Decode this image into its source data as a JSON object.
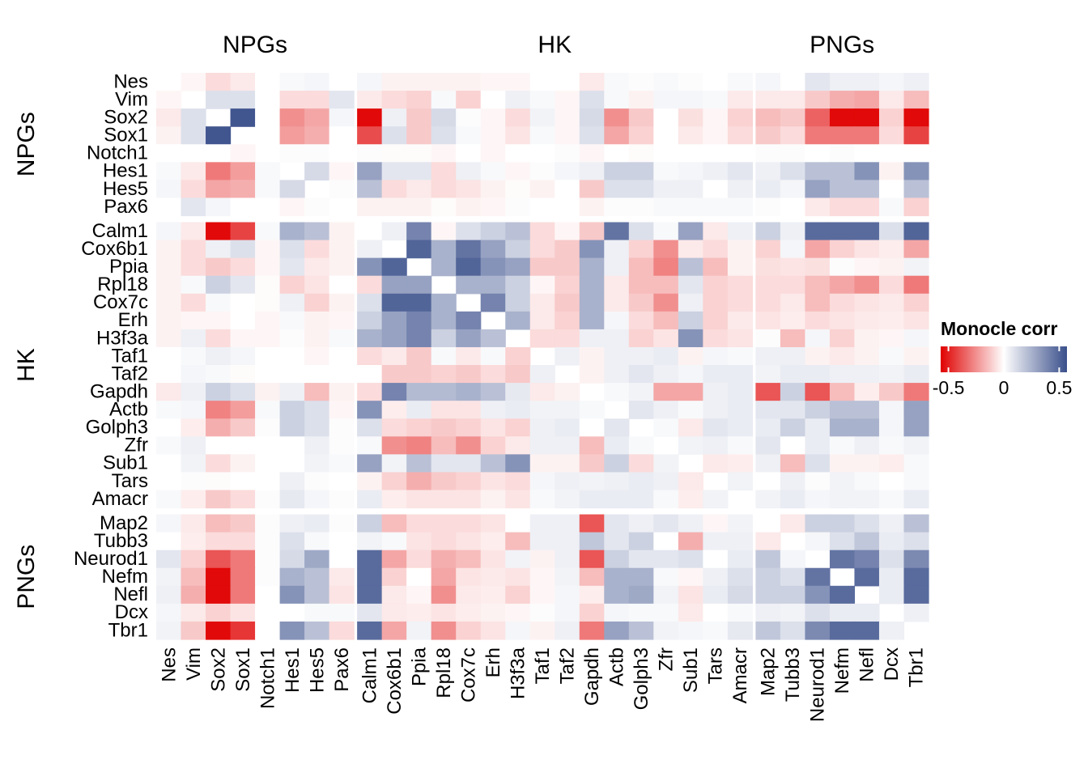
{
  "chart_data": {
    "type": "heatmap",
    "groups": [
      {
        "name": "NPGs",
        "genes": [
          "Nes",
          "Vim",
          "Sox2",
          "Sox1",
          "Notch1",
          "Hes1",
          "Hes5",
          "Pax6"
        ]
      },
      {
        "name": "HK",
        "genes": [
          "Calm1",
          "Cox6b1",
          "Ppia",
          "Rpl18",
          "Cox7c",
          "Erh",
          "H3f3a",
          "Taf1",
          "Taf2",
          "Gapdh",
          "Actb",
          "Golph3",
          "Zfr",
          "Sub1",
          "Tars",
          "Amacr"
        ]
      },
      {
        "name": "PNGs",
        "genes": [
          "Map2",
          "Tubb3",
          "Neurod1",
          "Nefm",
          "Nefl",
          "Dcx",
          "Tbr1"
        ]
      }
    ],
    "values": [
      [
        null,
        -0.02,
        -0.08,
        -0.05,
        0,
        0.02,
        0.03,
        0,
        0.03,
        -0.03,
        -0.03,
        -0.03,
        -0.03,
        -0.02,
        -0.02,
        0,
        0,
        -0.05,
        0.02,
        0.01,
        0.02,
        0.01,
        0,
        0.02,
        0.03,
        0,
        0.08,
        0.05,
        0.05,
        0.03,
        0.05
      ],
      [
        -0.02,
        null,
        0.1,
        0.1,
        0,
        -0.08,
        -0.08,
        0.08,
        -0.05,
        -0.08,
        -0.1,
        0.02,
        -0.1,
        0,
        0.05,
        0.02,
        -0.02,
        0.1,
        0.02,
        -0.03,
        0.03,
        0.03,
        0.02,
        -0.05,
        -0.05,
        -0.05,
        -0.12,
        -0.18,
        -0.2,
        -0.05,
        -0.15
      ],
      [
        -0.05,
        0.1,
        null,
        0.55,
        0,
        -0.25,
        -0.2,
        0.03,
        -0.55,
        0.05,
        -0.12,
        0.12,
        0.01,
        -0.02,
        -0.08,
        0.04,
        -0.02,
        0.12,
        -0.25,
        -0.12,
        0,
        -0.07,
        -0.02,
        -0.1,
        -0.15,
        -0.12,
        -0.35,
        -0.55,
        -0.55,
        -0.1,
        -0.55
      ],
      [
        -0.03,
        0.1,
        0.55,
        null,
        0,
        -0.22,
        -0.18,
        0,
        -0.4,
        0.1,
        -0.12,
        0.1,
        0.02,
        -0.02,
        -0.06,
        0.02,
        -0.02,
        0.1,
        -0.2,
        -0.1,
        0,
        -0.05,
        -0.02,
        -0.08,
        -0.12,
        -0.08,
        -0.3,
        -0.3,
        -0.3,
        -0.08,
        -0.42
      ],
      [
        0,
        0,
        0,
        -0.02,
        null,
        0.01,
        0.01,
        0,
        0.01,
        -0.01,
        -0.01,
        -0.02,
        0,
        -0.02,
        0,
        0,
        0.01,
        -0.02,
        0,
        -0.01,
        0,
        0,
        0,
        0,
        0.01,
        0.01,
        0,
        0.01,
        0,
        0,
        0
      ],
      [
        0.02,
        -0.05,
        -0.3,
        -0.22,
        0.02,
        null,
        0.12,
        -0.02,
        0.3,
        0.08,
        0.08,
        -0.08,
        0.05,
        0.02,
        -0.02,
        0.01,
        0.03,
        0.05,
        0.15,
        0.15,
        0.02,
        0.03,
        0.05,
        0.08,
        0.05,
        0.1,
        0.2,
        0.2,
        0.35,
        -0.03,
        0.35
      ],
      [
        0.03,
        -0.08,
        -0.2,
        -0.18,
        0.02,
        0.12,
        null,
        0.01,
        0.2,
        -0.08,
        -0.05,
        -0.08,
        -0.06,
        -0.03,
        -0.01,
        -0.03,
        0,
        -0.12,
        0.1,
        0.1,
        0.05,
        0.05,
        0,
        0.05,
        0.06,
        0.03,
        0.3,
        0.2,
        0.2,
        0,
        0.2
      ],
      [
        0,
        0.08,
        0.03,
        0,
        0,
        -0.02,
        0.01,
        null,
        -0.03,
        -0.03,
        -0.03,
        -0.01,
        -0.03,
        -0.02,
        0.01,
        0,
        0,
        -0.03,
        0.01,
        0.01,
        0.02,
        0.02,
        0.02,
        0.02,
        0.01,
        0,
        -0.05,
        -0.08,
        -0.08,
        0.02,
        -0.1
      ],
      [
        0.03,
        -0.05,
        -0.55,
        -0.42,
        0.02,
        0.25,
        0.2,
        -0.03,
        null,
        0.05,
        0.4,
        -0.02,
        0.1,
        0.15,
        0.2,
        -0.08,
        -0.02,
        -0.12,
        0.45,
        0.1,
        0.02,
        0.3,
        -0.05,
        0.05,
        0.15,
        0.05,
        0.48,
        0.48,
        0.48,
        0.1,
        0.5
      ],
      [
        -0.03,
        -0.08,
        0.05,
        0.1,
        -0.02,
        0.1,
        -0.08,
        -0.03,
        0.05,
        null,
        0.5,
        0.25,
        0.45,
        0.3,
        0.15,
        -0.08,
        -0.12,
        0.35,
        0.05,
        -0.1,
        -0.25,
        -0.05,
        -0.08,
        -0.03,
        -0.1,
        0.03,
        -0.2,
        -0.1,
        -0.06,
        -0.04,
        -0.2
      ],
      [
        -0.03,
        -0.08,
        -0.12,
        -0.08,
        -0.02,
        0.08,
        -0.05,
        -0.03,
        0.35,
        0.5,
        null,
        0.25,
        0.5,
        0.35,
        0.3,
        -0.12,
        -0.12,
        0.25,
        0.05,
        -0.15,
        -0.28,
        0.2,
        -0.15,
        -0.03,
        -0.07,
        -0.06,
        -0.07,
        0.01,
        -0.02,
        -0.03,
        0.04
      ],
      [
        -0.03,
        0.02,
        0.15,
        0.08,
        -0.01,
        -0.1,
        -0.06,
        0,
        -0.08,
        0.3,
        0.3,
        null,
        0.25,
        0.25,
        0.15,
        -0.02,
        -0.1,
        0.25,
        -0.05,
        -0.15,
        -0.15,
        0.08,
        -0.1,
        -0.08,
        -0.08,
        -0.08,
        -0.15,
        -0.2,
        -0.25,
        -0.08,
        -0.3
      ],
      [
        -0.03,
        -0.08,
        0.02,
        0,
        -0.01,
        0.05,
        -0.1,
        -0.03,
        0.1,
        0.5,
        0.5,
        0.25,
        null,
        0.4,
        0.15,
        -0.05,
        -0.12,
        0.25,
        -0.05,
        -0.12,
        -0.25,
        0.05,
        -0.1,
        -0.08,
        -0.08,
        -0.05,
        -0.15,
        -0.08,
        -0.06,
        -0.05,
        -0.1
      ],
      [
        -0.03,
        -0.02,
        -0.02,
        0,
        -0.02,
        0.02,
        -0.03,
        -0.02,
        0.15,
        0.3,
        0.4,
        0.25,
        0.4,
        null,
        0.25,
        -0.05,
        -0.1,
        0.25,
        0.03,
        -0.08,
        -0.15,
        0.15,
        -0.1,
        -0.05,
        -0.06,
        -0.04,
        -0.08,
        -0.06,
        -0.05,
        -0.04,
        -0.06
      ],
      [
        -0.03,
        0.05,
        -0.08,
        -0.02,
        -0.02,
        0.01,
        -0.03,
        0.02,
        0.25,
        0.3,
        0.4,
        0.15,
        0.3,
        0.2,
        null,
        -0.08,
        -0.08,
        0.05,
        0.05,
        -0.1,
        -0.06,
        0.35,
        -0.08,
        -0.06,
        0.01,
        -0.15,
        0.03,
        -0.1,
        -0.03,
        -0.02,
        0.03
      ],
      [
        0,
        0.02,
        0.05,
        0.03,
        0,
        0,
        -0.02,
        0,
        -0.08,
        -0.05,
        -0.12,
        0.02,
        -0.05,
        0.02,
        -0.1,
        null,
        0.05,
        -0.03,
        0.05,
        0.05,
        0.06,
        -0.03,
        0.03,
        0.02,
        0.05,
        0.05,
        -0.03,
        -0.05,
        -0.03,
        0.02,
        -0.03
      ],
      [
        0,
        0.03,
        0.02,
        -0.01,
        0,
        0,
        0,
        0,
        0,
        -0.12,
        -0.12,
        -0.1,
        -0.12,
        -0.08,
        -0.12,
        0.05,
        null,
        -0.03,
        0.05,
        0.08,
        0.05,
        0.03,
        0.06,
        0.06,
        0.04,
        0.06,
        0.06,
        0.05,
        0.05,
        0.04,
        0.06
      ],
      [
        -0.05,
        0.05,
        0.15,
        0.1,
        -0.03,
        0.05,
        -0.15,
        -0.03,
        -0.08,
        0.4,
        0.22,
        0.22,
        0.25,
        0.2,
        0.07,
        -0.05,
        -0.03,
        null,
        0.02,
        0.04,
        -0.2,
        -0.2,
        0.05,
        0.06,
        -0.38,
        0.15,
        -0.38,
        -0.15,
        -0.04,
        -0.12,
        -0.3
      ],
      [
        0.02,
        0.03,
        -0.28,
        -0.22,
        0.02,
        0.15,
        0.1,
        -0.02,
        0.35,
        -0.04,
        0.06,
        -0.06,
        -0.06,
        0.05,
        0.06,
        0.04,
        0.04,
        0.02,
        null,
        0.08,
        0.05,
        0.02,
        0.05,
        0.06,
        0.08,
        0.08,
        0.15,
        0.2,
        0.2,
        0.03,
        0.3
      ],
      [
        0,
        -0.04,
        -0.18,
        -0.12,
        0.01,
        0.15,
        0.1,
        0.01,
        0.1,
        -0.08,
        -0.1,
        -0.12,
        -0.1,
        -0.06,
        -0.1,
        0.05,
        0.06,
        0,
        0.08,
        null,
        0.02,
        -0.05,
        0.08,
        0.06,
        0.06,
        0.15,
        0.06,
        0.25,
        0.25,
        0.03,
        0.3
      ],
      [
        0.02,
        0.05,
        0,
        0,
        0,
        0,
        0.05,
        0.01,
        0.02,
        -0.25,
        -0.28,
        -0.15,
        -0.25,
        -0.1,
        -0.05,
        0.05,
        0.05,
        -0.15,
        0.06,
        0.02,
        null,
        0.04,
        0.05,
        0.02,
        0.08,
        0,
        0.06,
        0.02,
        0.05,
        0.02,
        0.04
      ],
      [
        0,
        0.04,
        -0.08,
        -0.03,
        0,
        0,
        0.04,
        0.02,
        0.3,
        0.04,
        0.2,
        0.08,
        0.08,
        0.2,
        0.35,
        -0.03,
        -0.03,
        -0.12,
        0.15,
        -0.08,
        0.04,
        null,
        -0.05,
        -0.04,
        0.05,
        -0.15,
        0.1,
        -0.03,
        -0.03,
        -0.04,
        0.02
      ],
      [
        0,
        0.01,
        -0.01,
        0,
        0,
        0.05,
        0.01,
        0,
        -0.03,
        -0.1,
        -0.18,
        -0.12,
        -0.1,
        -0.06,
        -0.08,
        0.03,
        0.05,
        0.04,
        0.05,
        0.06,
        0.05,
        -0.05,
        null,
        0.04,
        0,
        0.05,
        0.01,
        0.04,
        0.02,
        0,
        0.02
      ],
      [
        0.02,
        -0.04,
        -0.12,
        -0.08,
        0.01,
        0.07,
        0.03,
        0.01,
        0.06,
        -0.04,
        -0.06,
        -0.06,
        -0.06,
        -0.03,
        -0.06,
        0.02,
        0.04,
        0.06,
        0.06,
        0.06,
        0.02,
        -0.04,
        0.04,
        null,
        0.04,
        0.06,
        0.03,
        0.04,
        0.04,
        0.02,
        0.06
      ],
      [
        0.03,
        -0.05,
        -0.15,
        -0.12,
        0.01,
        0.05,
        0.06,
        0.01,
        0.15,
        -0.15,
        -0.08,
        -0.08,
        -0.08,
        -0.06,
        0,
        0.05,
        0.05,
        -0.38,
        0.08,
        0.05,
        0.08,
        0.05,
        -0.02,
        0.04,
        null,
        -0.05,
        0.15,
        0.15,
        0.1,
        0.05,
        0.2
      ],
      [
        0,
        -0.04,
        -0.08,
        -0.08,
        0.01,
        0.1,
        0.02,
        0,
        0.04,
        0.02,
        -0.06,
        -0.08,
        -0.06,
        -0.04,
        -0.15,
        0.05,
        0.05,
        0.18,
        0.08,
        0.15,
        0,
        -0.18,
        0.05,
        0.05,
        -0.05,
        null,
        0.03,
        0.1,
        0.18,
        0.06,
        0.1
      ],
      [
        0.08,
        -0.1,
        -0.38,
        -0.3,
        0.01,
        0.12,
        0.28,
        0,
        0.48,
        -0.2,
        -0.08,
        -0.18,
        -0.15,
        -0.06,
        0.04,
        -0.03,
        0.05,
        -0.38,
        0.15,
        0.08,
        0.08,
        0.1,
        0,
        0.06,
        0.18,
        0.03,
        null,
        0.45,
        0.4,
        0.1,
        0.38
      ],
      [
        0.04,
        -0.15,
        -0.55,
        -0.3,
        0.01,
        0.25,
        0.2,
        -0.05,
        0.48,
        -0.1,
        0,
        -0.2,
        -0.06,
        -0.05,
        -0.06,
        -0.02,
        0.04,
        -0.15,
        0.25,
        0.25,
        0.02,
        -0.02,
        0.05,
        0.1,
        0.15,
        0.1,
        0.45,
        null,
        0.48,
        0.06,
        0.48
      ],
      [
        0.05,
        -0.18,
        -0.55,
        -0.3,
        0,
        0.35,
        0.2,
        -0.06,
        0.48,
        -0.05,
        -0.02,
        -0.25,
        -0.05,
        -0.04,
        -0.1,
        -0.02,
        0.03,
        -0.04,
        0.25,
        0.28,
        0.04,
        -0.06,
        0.06,
        0.12,
        0.15,
        0.15,
        0.35,
        0.48,
        null,
        0.06,
        0.48
      ],
      [
        0.03,
        -0.05,
        -0.1,
        -0.06,
        0,
        0,
        0.02,
        0.02,
        0.08,
        -0.05,
        -0.04,
        -0.06,
        -0.04,
        -0.03,
        -0.02,
        0.01,
        0.03,
        -0.1,
        0.03,
        0.02,
        0.02,
        -0.05,
        0,
        0.02,
        0.05,
        0.04,
        0.1,
        0.06,
        0.06,
        null,
        0.05
      ],
      [
        0.04,
        -0.12,
        -0.55,
        -0.45,
        0,
        0.35,
        0.2,
        -0.08,
        0.48,
        -0.2,
        0.04,
        -0.25,
        -0.1,
        -0.06,
        0.03,
        -0.03,
        0.05,
        -0.3,
        0.3,
        0.2,
        0.04,
        0.03,
        0.02,
        0.07,
        0.18,
        0.1,
        0.38,
        0.48,
        0.48,
        0.05,
        null
      ]
    ],
    "zlim": [
      -0.57,
      0.57
    ],
    "colors": {
      "low": "#e00000",
      "mid": "#ffffff",
      "high": "#3a4f8b"
    },
    "legend": {
      "title": "Monocle corr",
      "ticks": [
        -0.5,
        0,
        0.5
      ]
    }
  }
}
